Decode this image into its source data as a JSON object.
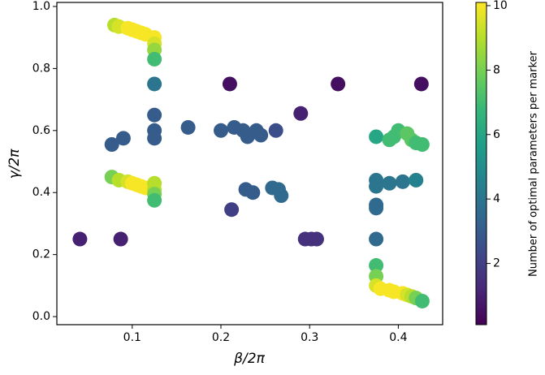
{
  "chart_data": {
    "type": "scatter",
    "xlabel": "β/2π",
    "ylabel": "γ/2π",
    "x": [
      0.041,
      0.087,
      0.08,
      0.085,
      0.095,
      0.1,
      0.105,
      0.11,
      0.115,
      0.125,
      0.125,
      0.125,
      0.125,
      0.125,
      0.125,
      0.125,
      0.125,
      0.077,
      0.09,
      0.077,
      0.085,
      0.095,
      0.1,
      0.105,
      0.11,
      0.115,
      0.125,
      0.125,
      0.125,
      0.125,
      0.163,
      0.2,
      0.215,
      0.225,
      0.23,
      0.24,
      0.245,
      0.262,
      0.21,
      0.29,
      0.332,
      0.426,
      0.212,
      0.228,
      0.236,
      0.258,
      0.265,
      0.268,
      0.295,
      0.302,
      0.308,
      0.375,
      0.39,
      0.395,
      0.4,
      0.41,
      0.415,
      0.42,
      0.427,
      0.375,
      0.375,
      0.375,
      0.375,
      0.375,
      0.39,
      0.405,
      0.42,
      0.375,
      0.375,
      0.375,
      0.38,
      0.39,
      0.395,
      0.405,
      0.41,
      0.415,
      0.42,
      0.427
    ],
    "values": [
      0.25,
      0.25,
      0.94,
      0.935,
      0.93,
      0.925,
      0.92,
      0.915,
      0.91,
      0.9,
      0.88,
      0.86,
      0.83,
      0.75,
      0.65,
      0.6,
      0.575,
      0.555,
      0.575,
      0.45,
      0.44,
      0.435,
      0.43,
      0.425,
      0.42,
      0.415,
      0.43,
      0.41,
      0.395,
      0.375,
      0.61,
      0.6,
      0.61,
      0.6,
      0.58,
      0.6,
      0.585,
      0.6,
      0.75,
      0.655,
      0.75,
      0.75,
      0.345,
      0.41,
      0.4,
      0.415,
      0.41,
      0.39,
      0.25,
      0.25,
      0.25,
      0.58,
      0.57,
      0.58,
      0.6,
      0.59,
      0.57,
      0.56,
      0.555,
      0.44,
      0.42,
      0.36,
      0.35,
      0.25,
      0.43,
      0.435,
      0.44,
      0.165,
      0.13,
      0.1,
      0.09,
      0.085,
      0.08,
      0.075,
      0.07,
      0.065,
      0.06,
      0.05
    ],
    "color_values": [
      1,
      1,
      9,
      9.5,
      10,
      10,
      10,
      10,
      10,
      10,
      9.5,
      8.5,
      7,
      4,
      3,
      3,
      3,
      3,
      3,
      8,
      9,
      9.5,
      10,
      10,
      10,
      10,
      9,
      9,
      8,
      7,
      3,
      3,
      3,
      3,
      3,
      3,
      3,
      2.5,
      0.5,
      1,
      0.5,
      0.5,
      2,
      3,
      3,
      3.5,
      3.5,
      3.5,
      1.5,
      1.5,
      1.5,
      6,
      7,
      7,
      7,
      7.5,
      7.5,
      7,
      7,
      4,
      4,
      3.5,
      3.5,
      3.5,
      4,
      4,
      4.5,
      7,
      8,
      9.5,
      10,
      10,
      10,
      10,
      9.5,
      9,
      8,
      7
    ],
    "colormap": "viridis",
    "xlim": [
      0.015,
      0.45
    ],
    "xticks": [
      0.1,
      0.2,
      0.3,
      0.4
    ],
    "ylim": [
      -0.026,
      1.013
    ],
    "yticks": [
      {
        "value": 0,
        "label": "0.0"
      },
      0.2,
      0.4,
      0.6,
      0.8,
      {
        "value": 1,
        "label": "1.0"
      }
    ],
    "colorbar": {
      "label": "Number of optimal parameters per marker",
      "lim": [
        0.1,
        10.1
      ],
      "ticks": [
        2,
        4,
        6,
        8,
        10
      ]
    }
  }
}
